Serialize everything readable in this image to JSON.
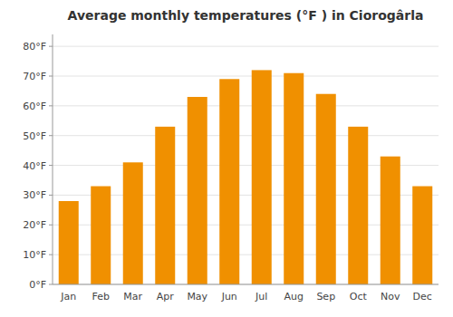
{
  "chart_data": {
    "type": "bar",
    "title": "Average monthly temperatures (°F ) in Ciorogârla",
    "categories": [
      "Jan",
      "Feb",
      "Mar",
      "Apr",
      "May",
      "Jun",
      "Jul",
      "Aug",
      "Sep",
      "Oct",
      "Nov",
      "Dec"
    ],
    "values": [
      28,
      33,
      41,
      53,
      63,
      69,
      72,
      71,
      64,
      53,
      43,
      33
    ],
    "color": "#F09000",
    "ylim": [
      0,
      84
    ],
    "yticks": [
      {
        "value": 0,
        "label": "0°F"
      },
      {
        "value": 10,
        "label": "10°F"
      },
      {
        "value": 20,
        "label": "20°F"
      },
      {
        "value": 30,
        "label": "30°F"
      },
      {
        "value": 40,
        "label": "40°F"
      },
      {
        "value": 50,
        "label": "50°F"
      },
      {
        "value": 60,
        "label": "60°F"
      },
      {
        "value": 70,
        "label": "70°F"
      },
      {
        "value": 80,
        "label": "80°F"
      }
    ],
    "grid": true
  }
}
